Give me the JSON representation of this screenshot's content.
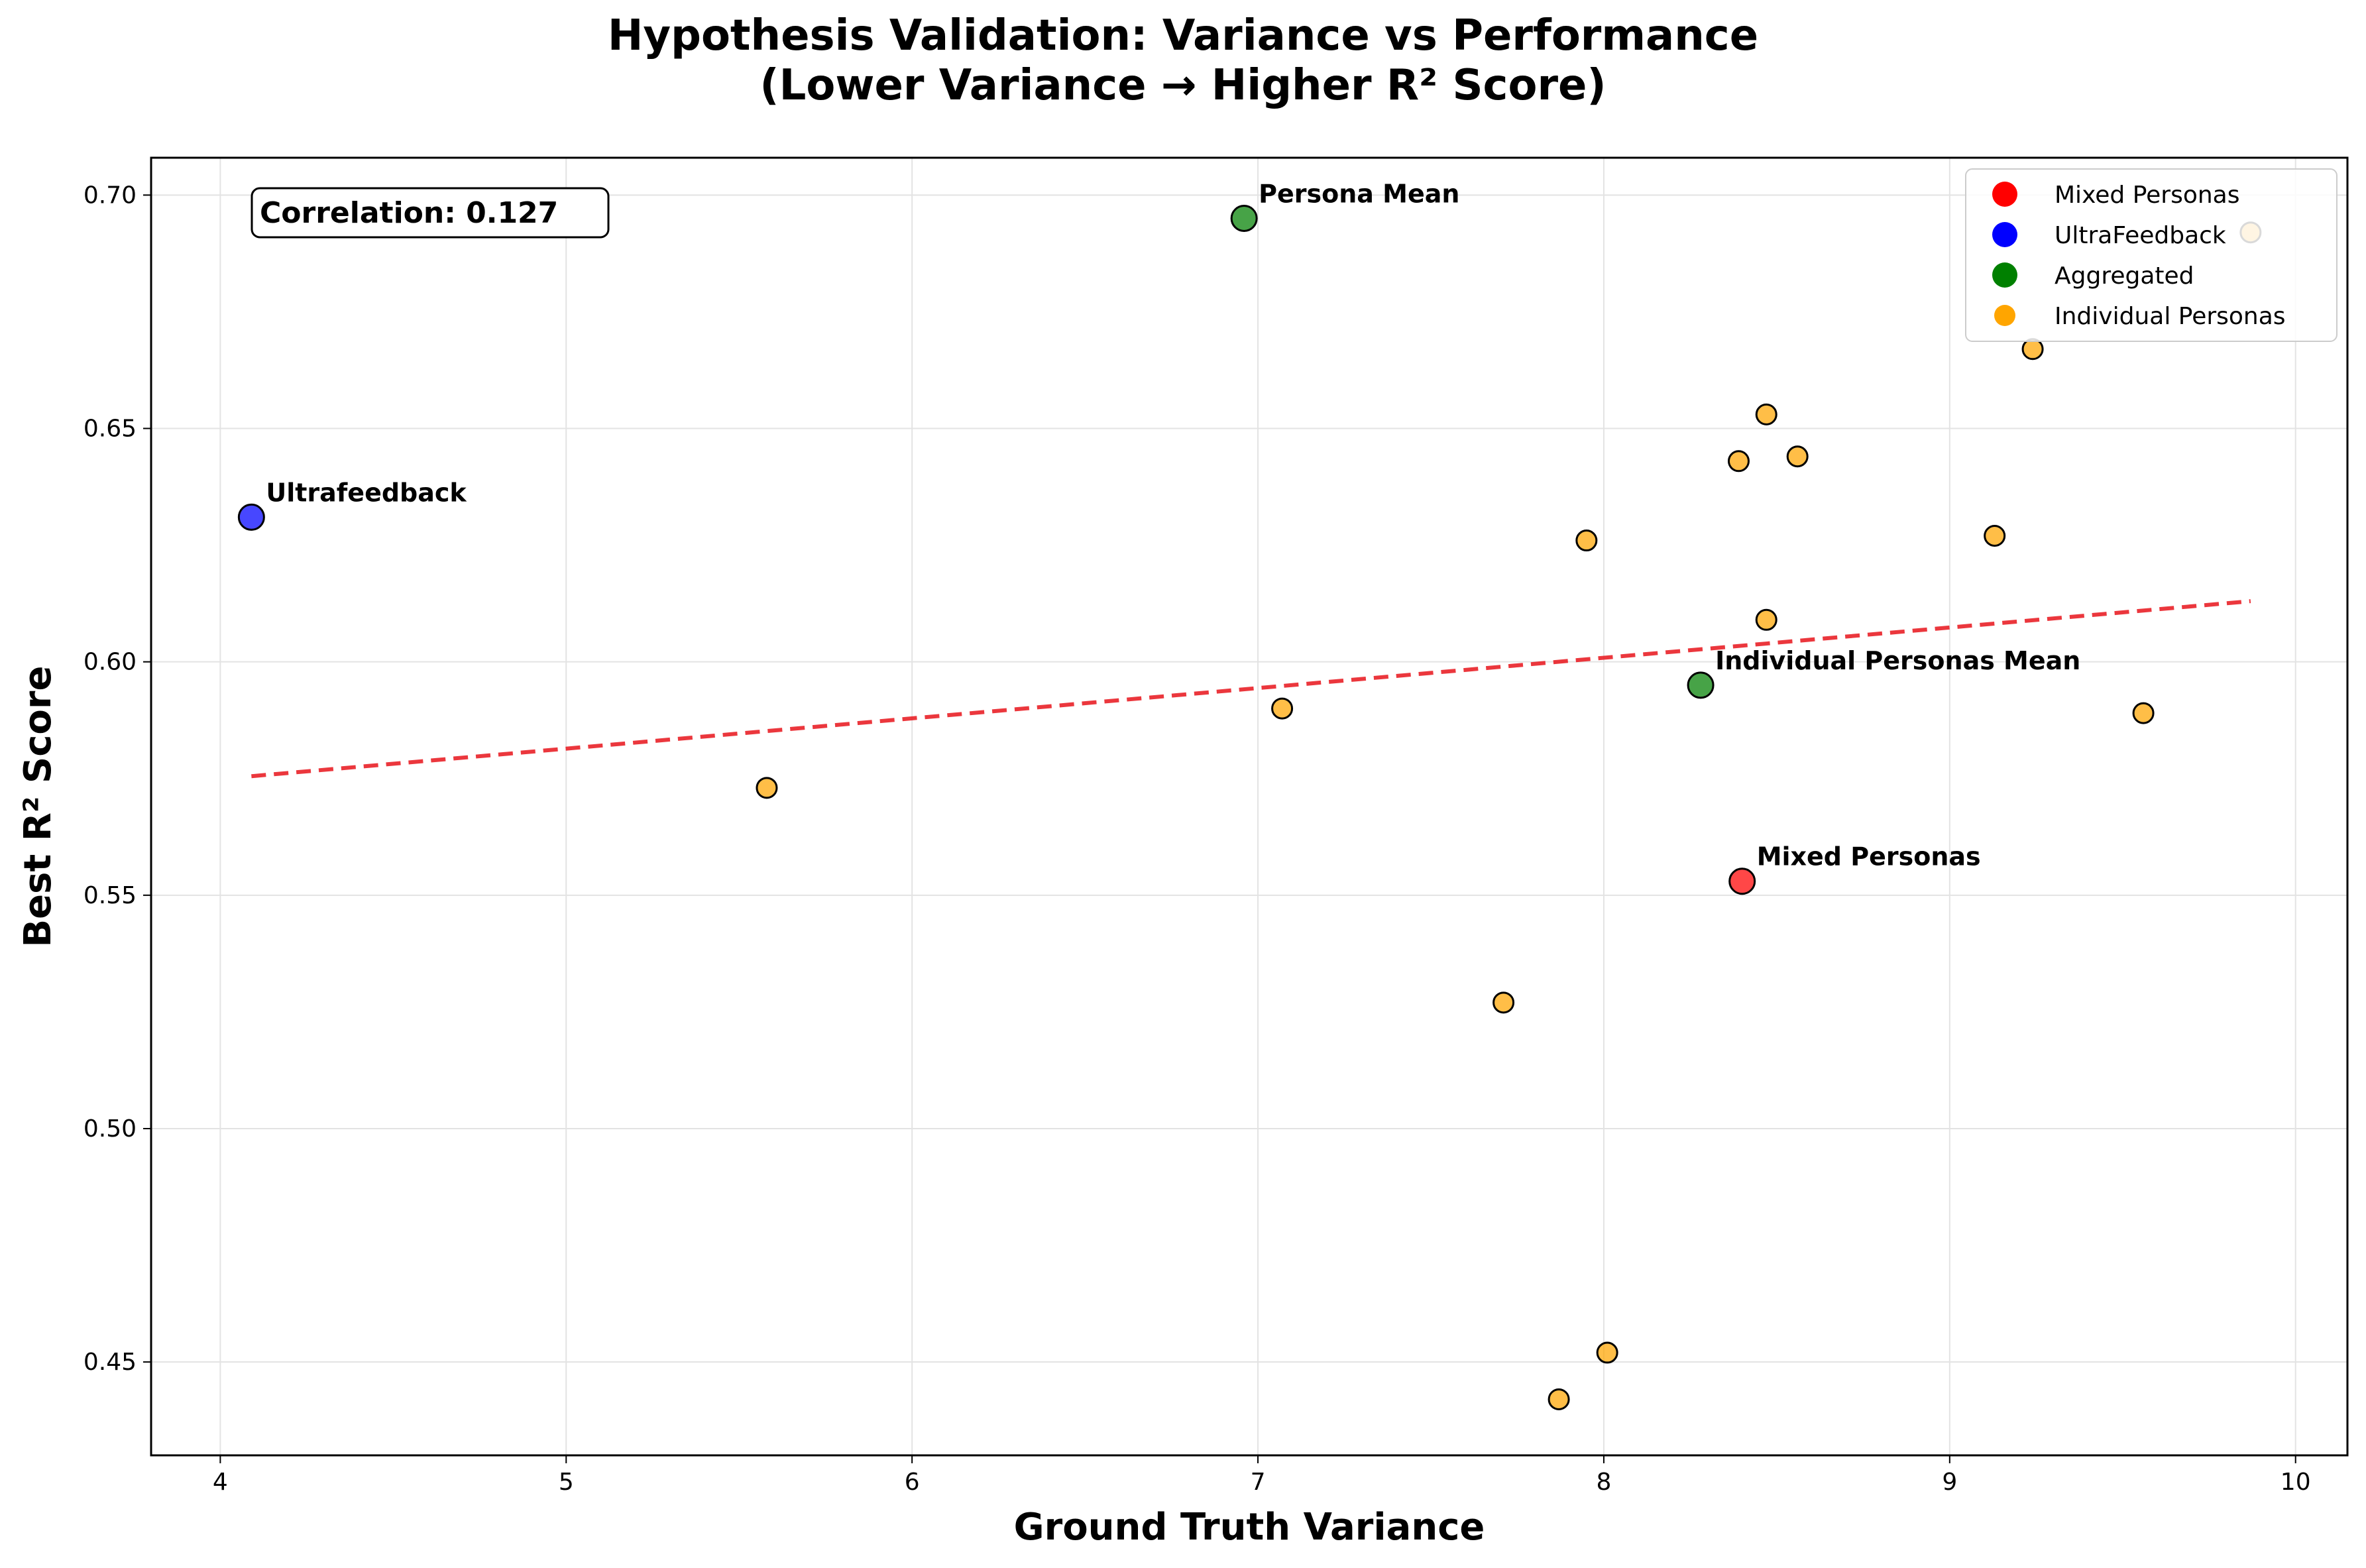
{
  "chart_data": {
    "type": "scatter",
    "title": "Hypothesis Validation: Variance vs Performance",
    "subtitle": "(Lower Variance → Higher R² Score)",
    "xlabel": "Ground Truth Variance",
    "ylabel": "Best R² Score",
    "xlim": [
      3.8,
      10.15
    ],
    "ylim": [
      0.43,
      0.708
    ],
    "xticks": [
      4,
      5,
      6,
      7,
      8,
      9,
      10
    ],
    "yticks": [
      0.45,
      0.5,
      0.55,
      0.6,
      0.65,
      0.7
    ],
    "xtick_labels": [
      "4",
      "5",
      "6",
      "7",
      "8",
      "9",
      "10"
    ],
    "ytick_labels": [
      "0.45",
      "0.50",
      "0.55",
      "0.60",
      "0.65",
      "0.70"
    ],
    "grid": true,
    "legend_position": "top-right",
    "correlation_label": "Correlation: 0.127",
    "trendline": {
      "style": "dashed",
      "color": "#e8141b",
      "points": [
        [
          4.09,
          0.5755
        ],
        [
          9.87,
          0.613
        ]
      ]
    },
    "series": [
      {
        "name": "Mixed Personas",
        "color": "#ff0000",
        "points": [
          {
            "x": 8.4,
            "y": 0.553,
            "label": "Mixed Personas"
          }
        ]
      },
      {
        "name": "UltraFeedback",
        "color": "#0000ff",
        "points": [
          {
            "x": 4.09,
            "y": 0.631,
            "label": "Ultrafeedback"
          }
        ]
      },
      {
        "name": "Aggregated",
        "color": "#008000",
        "points": [
          {
            "x": 6.96,
            "y": 0.695,
            "label": "Persona Mean"
          },
          {
            "x": 8.28,
            "y": 0.595,
            "label": "Individual Personas Mean"
          }
        ]
      },
      {
        "name": "Individual Personas",
        "color": "#ffa500",
        "points": [
          {
            "x": 5.58,
            "y": 0.573
          },
          {
            "x": 7.07,
            "y": 0.59
          },
          {
            "x": 7.71,
            "y": 0.527
          },
          {
            "x": 7.87,
            "y": 0.442
          },
          {
            "x": 7.95,
            "y": 0.626
          },
          {
            "x": 8.01,
            "y": 0.452
          },
          {
            "x": 8.39,
            "y": 0.643
          },
          {
            "x": 8.47,
            "y": 0.653
          },
          {
            "x": 8.47,
            "y": 0.609
          },
          {
            "x": 8.56,
            "y": 0.644
          },
          {
            "x": 9.13,
            "y": 0.627
          },
          {
            "x": 9.24,
            "y": 0.667
          },
          {
            "x": 9.56,
            "y": 0.589
          },
          {
            "x": 9.87,
            "y": 0.692
          }
        ]
      }
    ]
  }
}
